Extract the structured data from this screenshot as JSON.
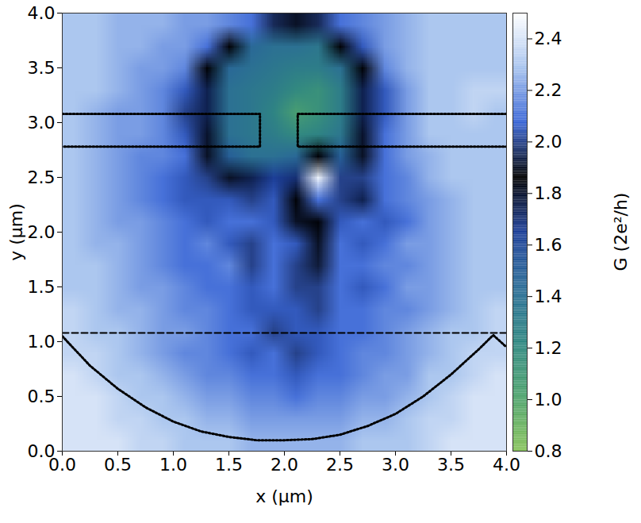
{
  "chart_data": {
    "type": "heatmap",
    "x_label": "x (µm)",
    "y_label": "y (µm)",
    "xlim": [
      0,
      4
    ],
    "ylim": [
      0,
      4
    ],
    "xticks": [
      {
        "value": 0,
        "label": "0.0"
      },
      0.5,
      {
        "value": 1,
        "label": "1.0"
      },
      1.5,
      {
        "value": 2,
        "label": "2.0"
      },
      2.5,
      {
        "value": 3,
        "label": "3.0"
      },
      3.5,
      {
        "value": 4,
        "label": "4.0"
      }
    ],
    "yticks": [
      {
        "value": 0,
        "label": "0.0"
      },
      0.5,
      {
        "value": 1,
        "label": "1.0"
      },
      1.5,
      {
        "value": 2,
        "label": "2.0"
      },
      2.5,
      {
        "value": 3,
        "label": "3.0"
      },
      3.5,
      {
        "value": 4,
        "label": "4.0"
      }
    ],
    "x": [
      0.1,
      0.3,
      0.5,
      0.7,
      0.9,
      1.1,
      1.3,
      1.5,
      1.7,
      1.9,
      2.1,
      2.3,
      2.5,
      2.7,
      2.9,
      3.1,
      3.3,
      3.5,
      3.7,
      3.9
    ],
    "y": [
      3.9,
      3.7,
      3.5,
      3.3,
      3.1,
      2.9,
      2.7,
      2.5,
      2.3,
      2.1,
      1.9,
      1.7,
      1.5,
      1.3,
      1.1,
      0.9,
      0.7,
      0.5,
      0.3,
      0.1
    ],
    "z": [
      [
        2.3,
        2.3,
        2.25,
        2.25,
        2.25,
        2.2,
        2.2,
        2.15,
        2.1,
        1.95,
        1.9,
        1.95,
        2.1,
        2.15,
        2.2,
        2.25,
        2.3,
        2.3,
        2.3,
        2.3
      ],
      [
        2.3,
        2.3,
        2.25,
        2.25,
        2.2,
        2.2,
        2.1,
        1.85,
        1.45,
        1.4,
        1.4,
        1.35,
        1.85,
        2.05,
        2.2,
        2.25,
        2.3,
        2.3,
        2.3,
        2.3
      ],
      [
        2.3,
        2.3,
        2.25,
        2.2,
        2.2,
        2.15,
        1.85,
        1.45,
        1.4,
        1.35,
        1.3,
        1.3,
        1.4,
        1.85,
        2.15,
        2.25,
        2.3,
        2.3,
        2.3,
        2.3
      ],
      [
        2.3,
        2.3,
        2.25,
        2.2,
        2.15,
        2.05,
        1.75,
        1.4,
        1.35,
        1.3,
        1.2,
        1.15,
        1.3,
        1.75,
        2.05,
        2.2,
        2.3,
        2.3,
        2.35,
        2.35
      ],
      [
        2.3,
        2.25,
        2.2,
        2.2,
        2.15,
        2.0,
        1.75,
        1.4,
        1.35,
        1.25,
        1.05,
        1.15,
        1.3,
        1.75,
        2.05,
        2.2,
        2.3,
        2.3,
        2.35,
        2.3
      ],
      [
        2.3,
        2.25,
        2.2,
        2.2,
        2.15,
        2.05,
        1.8,
        1.4,
        1.35,
        1.3,
        1.2,
        1.25,
        1.35,
        1.8,
        2.1,
        2.2,
        2.3,
        2.3,
        2.3,
        2.3
      ],
      [
        2.3,
        2.25,
        2.2,
        2.15,
        2.15,
        2.1,
        1.9,
        1.5,
        1.4,
        1.4,
        1.45,
        1.85,
        1.5,
        1.9,
        2.1,
        2.2,
        2.25,
        2.3,
        2.3,
        2.3
      ],
      [
        2.3,
        2.25,
        2.2,
        2.15,
        2.1,
        2.05,
        2.0,
        1.9,
        1.75,
        1.65,
        1.7,
        2.45,
        2.0,
        2.0,
        2.1,
        2.15,
        2.25,
        2.3,
        2.3,
        2.3
      ],
      [
        2.3,
        2.25,
        2.2,
        2.15,
        2.1,
        2.05,
        2.05,
        2.05,
        2.0,
        2.05,
        1.85,
        2.1,
        2.0,
        1.75,
        2.1,
        2.15,
        2.2,
        2.25,
        2.3,
        2.3
      ],
      [
        2.3,
        2.25,
        2.2,
        2.2,
        2.15,
        2.1,
        2.05,
        2.1,
        2.1,
        2.05,
        1.9,
        1.85,
        2.05,
        2.1,
        2.05,
        2.1,
        2.2,
        2.25,
        2.3,
        2.3
      ],
      [
        2.3,
        2.25,
        2.25,
        2.2,
        2.15,
        2.1,
        2.15,
        2.05,
        2.0,
        2.1,
        2.05,
        1.9,
        2.1,
        2.05,
        2.1,
        2.2,
        2.2,
        2.25,
        2.3,
        2.3
      ],
      [
        2.3,
        2.3,
        2.25,
        2.2,
        2.15,
        2.1,
        2.1,
        2.15,
        2.0,
        2.1,
        2.0,
        1.92,
        2.1,
        2.1,
        2.15,
        2.15,
        2.2,
        2.25,
        2.3,
        2.3
      ],
      [
        2.3,
        2.3,
        2.25,
        2.2,
        2.2,
        2.15,
        2.1,
        2.1,
        2.05,
        2.1,
        2.0,
        2.0,
        2.1,
        2.05,
        2.1,
        2.2,
        2.2,
        2.25,
        2.3,
        2.3
      ],
      [
        2.35,
        2.3,
        2.25,
        2.25,
        2.2,
        2.15,
        2.15,
        2.1,
        2.05,
        2.05,
        2.05,
        2.0,
        2.1,
        2.1,
        2.15,
        2.15,
        2.2,
        2.25,
        2.3,
        2.35
      ],
      [
        2.35,
        2.3,
        2.3,
        2.25,
        2.2,
        2.2,
        2.15,
        2.1,
        2.1,
        2.0,
        2.05,
        2.05,
        2.1,
        2.1,
        2.15,
        2.2,
        2.25,
        2.3,
        2.3,
        2.35
      ],
      [
        2.35,
        2.35,
        2.3,
        2.25,
        2.2,
        2.15,
        2.15,
        2.1,
        2.05,
        2.1,
        2.0,
        2.05,
        2.1,
        2.15,
        2.15,
        2.2,
        2.25,
        2.3,
        2.35,
        2.35
      ],
      [
        2.4,
        2.35,
        2.3,
        2.3,
        2.25,
        2.2,
        2.15,
        2.15,
        2.1,
        2.1,
        2.05,
        2.1,
        2.1,
        2.15,
        2.2,
        2.2,
        2.3,
        2.3,
        2.35,
        2.4
      ],
      [
        2.4,
        2.4,
        2.35,
        2.3,
        2.3,
        2.25,
        2.2,
        2.2,
        2.15,
        2.15,
        2.1,
        2.15,
        2.15,
        2.2,
        2.2,
        2.25,
        2.3,
        2.35,
        2.4,
        2.4
      ],
      [
        2.4,
        2.4,
        2.35,
        2.35,
        2.3,
        2.3,
        2.25,
        2.25,
        2.2,
        2.2,
        2.2,
        2.2,
        2.2,
        2.25,
        2.25,
        2.3,
        2.35,
        2.35,
        2.4,
        2.4
      ],
      [
        2.4,
        2.4,
        2.4,
        2.35,
        2.35,
        2.3,
        2.3,
        2.3,
        2.25,
        2.25,
        2.25,
        2.25,
        2.25,
        2.3,
        2.3,
        2.3,
        2.35,
        2.4,
        2.4,
        2.4
      ]
    ],
    "colorbar": {
      "label": "G (2e²/h)",
      "lim": [
        0.8,
        2.5
      ],
      "ticks": [
        0.8,
        {
          "value": 1,
          "label": "1.0"
        },
        1.2,
        1.4,
        1.6,
        1.8,
        {
          "value": 2,
          "label": "2.0"
        },
        2.2,
        2.4
      ],
      "colors": [
        "#86c25a",
        "#4fa36e",
        "#2f8782",
        "#2b6c97",
        "#1d3f98",
        "#000000",
        "#3a66d6",
        "#a7c3ee",
        "#ffffff"
      ]
    },
    "lines": [
      {
        "line_style": "dotted",
        "x": [
          0,
          1.78,
          1.78,
          0
        ],
        "y": [
          3.08,
          3.08,
          2.78,
          2.78
        ]
      },
      {
        "line_style": "dotted",
        "x": [
          4,
          2.12,
          2.12,
          4
        ],
        "y": [
          3.08,
          3.08,
          2.78,
          2.78
        ]
      },
      {
        "line_style": "dashed",
        "x": [
          0,
          4
        ],
        "y": [
          1.08,
          1.08
        ]
      },
      {
        "line_style": "dotted",
        "x": [
          0,
          0.25,
          0.5,
          0.75,
          1.0,
          1.25,
          1.5,
          1.75,
          2.0,
          2.25,
          2.5,
          2.75,
          3.0,
          3.25,
          3.5,
          3.75,
          3.88,
          4.0
        ],
        "y": [
          1.05,
          0.78,
          0.57,
          0.4,
          0.27,
          0.18,
          0.13,
          0.1,
          0.1,
          0.11,
          0.15,
          0.23,
          0.34,
          0.5,
          0.7,
          0.93,
          1.06,
          0.95
        ]
      }
    ]
  }
}
